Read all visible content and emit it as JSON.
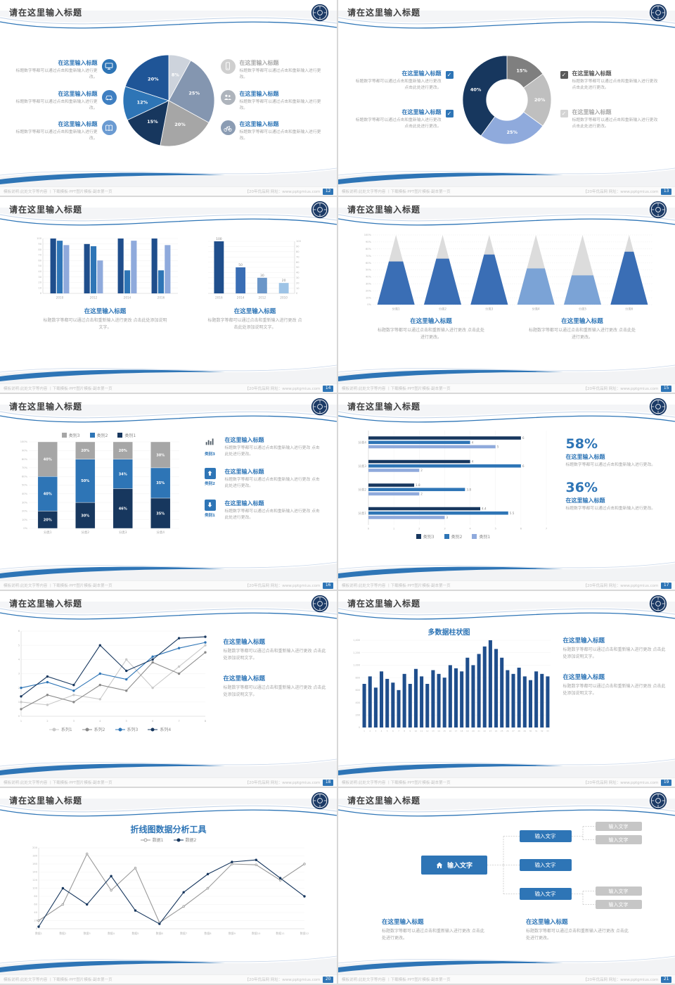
{
  "meta": {
    "accent": "#2e75b6",
    "dark_navy": "#17375e",
    "page_bg": "#d8d8d8"
  },
  "common": {
    "slide_title": "请在这里输入标题",
    "item_title": "在这里输入标题",
    "body_a": "标题数字等都可以通过点击和重新输入进行更改。",
    "body_b": "标题数字等都可以通过点击和重新输入进行更改 点击此处进行更改。",
    "body_c": "标题数字等都可以通过点击和重新输入进行更改 点击此处添加说明文字。",
    "footer_left": "模板说明:此处文字等内容 丨下载模板·PPT图片模板·副本第一页",
    "footer_right": "【20年优品网 网址：www.pptgmius.com"
  },
  "icons": {
    "check_glyph": "✓"
  },
  "slides": {
    "s12": {
      "page": "12"
    },
    "s13": {
      "page": "13"
    },
    "s14": {
      "page": "14"
    },
    "s15": {
      "page": "15"
    },
    "s16": {
      "page": "16",
      "items": [
        {
          "label": "类别3"
        },
        {
          "label": "类别2"
        },
        {
          "label": "类别1"
        }
      ]
    },
    "s17": {
      "page": "17",
      "stats": [
        {
          "pct": "58%"
        },
        {
          "pct": "36%"
        }
      ]
    },
    "s18": {
      "page": "18"
    },
    "s19": {
      "page": "19",
      "chart_title": "多数据柱状图"
    },
    "s20": {
      "page": "20",
      "chart_title": "折线图数据分析工具"
    },
    "s21": {
      "page": "21",
      "node_label": "输入文字"
    }
  },
  "chart_data": {
    "s12pie": {
      "type": "pie",
      "slices": [
        {
          "label": "8%",
          "value": 8,
          "color": "#cdd3dc"
        },
        {
          "label": "25%",
          "value": 25,
          "color": "#8496b0"
        },
        {
          "label": "20%",
          "value": 20,
          "color": "#a6a6a6"
        },
        {
          "label": "15%",
          "value": 15,
          "color": "#17375e"
        },
        {
          "label": "12%",
          "value": 12,
          "color": "#2e75b6"
        },
        {
          "label": "20%",
          "value": 20,
          "color": "#1f5597"
        }
      ]
    },
    "s13donut": {
      "type": "pie",
      "inner": 0.47,
      "slices": [
        {
          "label": "15%",
          "value": 15,
          "color": "#7f7f7f"
        },
        {
          "label": "20%",
          "value": 20,
          "color": "#bfbfbf"
        },
        {
          "label": "25%",
          "value": 25,
          "color": "#8faadc"
        },
        {
          "label": "40%",
          "value": 40,
          "color": "#17375e"
        }
      ]
    },
    "s14a": {
      "type": "groupbar",
      "categories": [
        "2010",
        "2012",
        "2014",
        "2016"
      ],
      "groups": [
        [
          100,
          96,
          88
        ],
        [
          90,
          86,
          60
        ],
        [
          100,
          42,
          96
        ],
        [
          100,
          42,
          88
        ]
      ],
      "colors": [
        "#1f4e8c",
        "#2e75b6",
        "#8faadc"
      ],
      "ymax": 100,
      "ystep": 10
    },
    "s14b": {
      "type": "bars",
      "categories": [
        "2016",
        "2014",
        "2012",
        "2010"
      ],
      "values": [
        100,
        50,
        30,
        20
      ],
      "colors": [
        "#1f4e8c",
        "#3a6eb5",
        "#6b96c8",
        "#9dc3e6"
      ],
      "ymax": 100,
      "ystep": 10
    },
    "s15cone": {
      "type": "cone",
      "categories": [
        "分类1",
        "分类2",
        "分类3",
        "分类4",
        "分类5",
        "分类6"
      ],
      "values": [
        62,
        66,
        72,
        52,
        42,
        76
      ],
      "colors": [
        "#3a6eb5",
        "#3a6eb5",
        "#3a6eb5",
        "#7ba3d6",
        "#7ba3d6",
        "#3a6eb5"
      ],
      "topColor": "#dcdcdc"
    },
    "s16stack": {
      "type": "stack",
      "categories": [
        "分类1",
        "分类2",
        "分类3",
        "分类4"
      ],
      "stacks": [
        [
          20,
          40,
          40
        ],
        [
          30,
          50,
          20
        ],
        [
          46,
          34,
          20
        ],
        [
          35,
          35,
          30
        ]
      ],
      "colors": [
        "#17375e",
        "#2e75b6",
        "#a6a6a6"
      ],
      "legend": [
        {
          "label": "类别3",
          "color": "#a6a6a6"
        },
        {
          "label": "类别2",
          "color": "#2e75b6"
        },
        {
          "label": "类别1",
          "color": "#17375e"
        }
      ]
    },
    "s17hbar": {
      "type": "hbar",
      "xmax": 7,
      "categories": [
        "分类4",
        "分类3",
        "分类2",
        "分类1"
      ],
      "series": [
        {
          "name": "类别3",
          "color": "#17375e",
          "values": [
            6,
            4,
            1.8,
            4.4
          ]
        },
        {
          "name": "类别2",
          "color": "#2e75b6",
          "values": [
            4,
            6,
            3.8,
            5.5
          ]
        },
        {
          "name": "类别1",
          "color": "#8faadc",
          "values": [
            5,
            2,
            2,
            3
          ]
        }
      ]
    },
    "s18line": {
      "type": "line",
      "ymax": 6,
      "ystep": 1,
      "xlabels": [
        "1",
        "2",
        "3",
        "4",
        "5",
        "6",
        "7",
        "8"
      ],
      "series": [
        {
          "name": "系列1",
          "color": "#c9c9c9",
          "values": [
            1,
            0.8,
            1.5,
            1.2,
            4,
            2,
            3.5,
            5
          ]
        },
        {
          "name": "系列2",
          "color": "#8a8a8a",
          "values": [
            0.5,
            1.5,
            1,
            2.2,
            1.8,
            3.8,
            3,
            4.5
          ]
        },
        {
          "name": "系列3",
          "color": "#2e75b6",
          "values": [
            2,
            2.4,
            1.8,
            3,
            2.6,
            4.2,
            4.8,
            5.2
          ]
        },
        {
          "name": "系列4",
          "color": "#17375e",
          "values": [
            1.4,
            2.8,
            2.2,
            5,
            3.2,
            4,
            5.5,
            5.6
          ]
        }
      ]
    },
    "s19col": {
      "type": "cols",
      "ymax": 1400,
      "ystep": 200,
      "color": "#1f4e8c",
      "values": [
        700,
        820,
        640,
        900,
        780,
        720,
        600,
        860,
        700,
        940,
        820,
        700,
        920,
        860,
        800,
        1000,
        950,
        900,
        1120,
        1000,
        1180,
        1300,
        1400,
        1260,
        1120,
        920,
        860,
        960,
        820,
        760,
        900,
        860,
        820
      ]
    },
    "s20line": {
      "type": "line",
      "ymax": 200,
      "ystep": 20,
      "xlabels": [
        "数据1",
        "数据2",
        "数据3",
        "数据4",
        "数据5",
        "数据6",
        "数据7",
        "数据8",
        "数据9",
        "数据10",
        "数据11",
        "数据12"
      ],
      "series": [
        {
          "name": "数据1",
          "color": "#9a9a9a",
          "open": true,
          "values": [
            20,
            60,
            185,
            95,
            150,
            15,
            55,
            100,
            160,
            158,
            120,
            160
          ]
        },
        {
          "name": "数据2",
          "color": "#17375e",
          "values": [
            5,
            100,
            60,
            130,
            45,
            12,
            90,
            135,
            165,
            170,
            125,
            80
          ]
        }
      ]
    }
  }
}
